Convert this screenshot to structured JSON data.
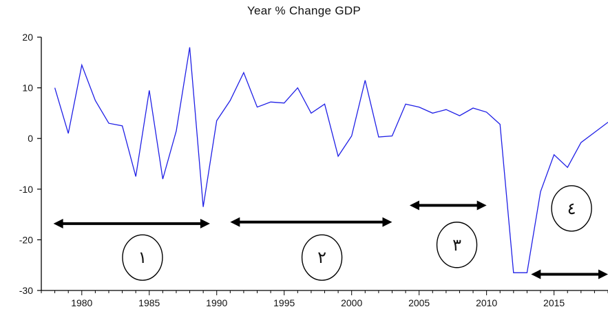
{
  "chart_data": {
    "type": "line",
    "title": "Year % Change GDP",
    "xlabel": "",
    "ylabel": "",
    "x": [
      1978,
      1979,
      1980,
      1981,
      1982,
      1983,
      1984,
      1985,
      1986,
      1987,
      1988,
      1989,
      1990,
      1991,
      1992,
      1993,
      1994,
      1995,
      1996,
      1997,
      1998,
      1999,
      2000,
      2001,
      2002,
      2003,
      2004,
      2005,
      2006,
      2007,
      2008,
      2009,
      2010,
      2011,
      2012,
      2013,
      2014,
      2015,
      2016,
      2017,
      2018,
      2019
    ],
    "series": [
      {
        "values": [
          10,
          1,
          14.5,
          7.5,
          3,
          2.5,
          -7.5,
          9.5,
          -8,
          1.5,
          18,
          -13.5,
          3.5,
          7.5,
          13,
          6.2,
          7.2,
          7,
          10,
          5,
          6.8,
          -3.5,
          0.5,
          11.5,
          0.3,
          0.5,
          6.8,
          6.2,
          5,
          5.7,
          4.5,
          6,
          5.2,
          2.8,
          -26.5,
          -26.5,
          -10.5,
          -3.2,
          -5.7,
          -0.8,
          1.2,
          3.2
        ]
      }
    ],
    "xlim": [
      1977,
      2019
    ],
    "ylim": [
      -30,
      20
    ],
    "xticks": [
      1980,
      1985,
      1990,
      1995,
      2000,
      2005,
      2010,
      2015
    ],
    "yticks": [
      20,
      10,
      0,
      -10,
      -20,
      -30
    ],
    "line_color": "#1f1fe6",
    "grid": false,
    "annotations": [
      {
        "label": "١",
        "arrow_from": 1977.9,
        "arrow_to": 1989.5,
        "arrow_y": -16.8,
        "circle_x": 1984.5,
        "circle_y": -23.5
      },
      {
        "label": "٢",
        "arrow_from": 1991.0,
        "arrow_to": 2003.0,
        "arrow_y": -16.5,
        "circle_x": 1997.8,
        "circle_y": -23.5
      },
      {
        "label": "٣",
        "arrow_from": 2004.3,
        "arrow_to": 2010.0,
        "arrow_y": -13.2,
        "circle_x": 2007.8,
        "circle_y": -21.0
      },
      {
        "label": "٤",
        "arrow_from": 2013.3,
        "arrow_to": 2019.0,
        "arrow_y": -26.8,
        "circle_x": 2016.3,
        "circle_y": -13.8
      }
    ]
  }
}
